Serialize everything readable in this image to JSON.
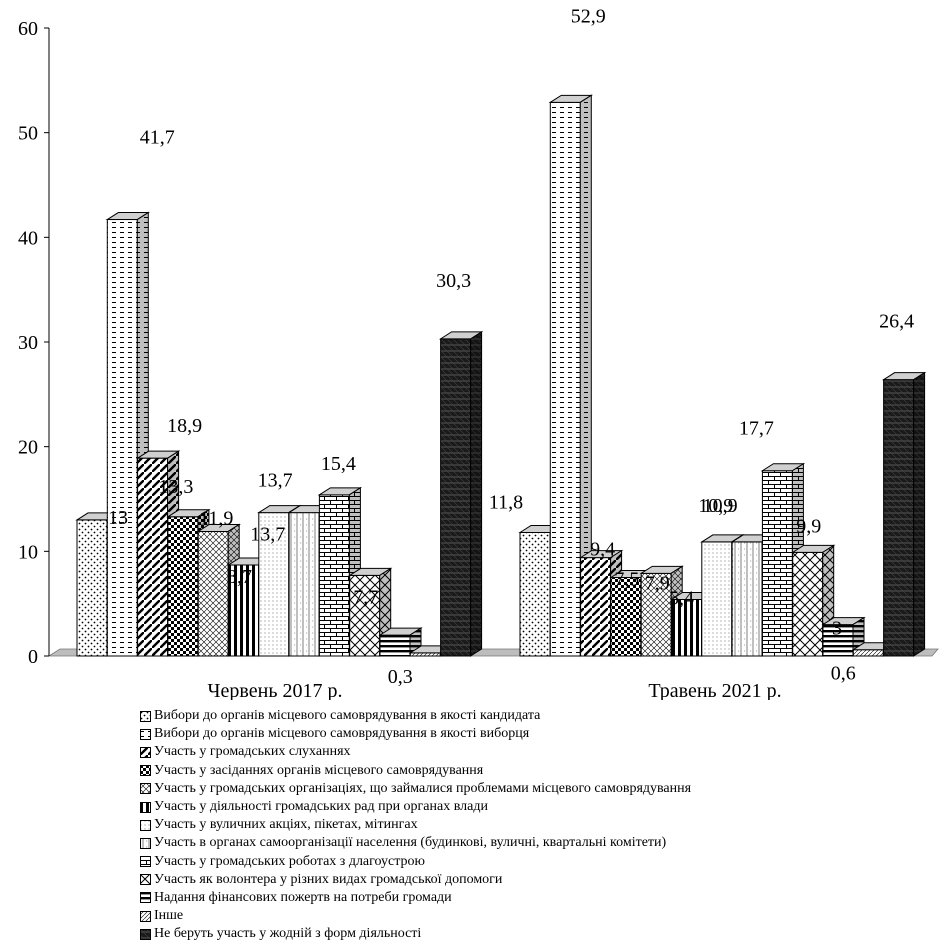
{
  "chart_data": {
    "type": "bar",
    "three_d": true,
    "grid": false,
    "legend_position": "bottom",
    "ylim": [
      0,
      60
    ],
    "yticks": [
      0,
      10,
      20,
      30,
      40,
      50,
      60
    ],
    "categories": [
      "Червень 2017 р.",
      "Травень 2021 р."
    ],
    "series": [
      {
        "name": "Вибори до органів місцевого самоврядування в якості кандидата",
        "values": [
          13,
          11.8
        ],
        "value_labels": [
          "13",
          "11,8"
        ]
      },
      {
        "name": "Вибори до органів місцевого самоврядування в якості виборця",
        "values": [
          41.7,
          52.9
        ],
        "value_labels": [
          "41,7",
          "52,9"
        ]
      },
      {
        "name": "Участь у громадських слуханнях",
        "values": [
          18.9,
          9.4
        ],
        "value_labels": [
          "18,9",
          "9,4"
        ]
      },
      {
        "name": "Участь у засіданнях органів місцевого самоврядування",
        "values": [
          13.3,
          7.5
        ],
        "value_labels": [
          "13,3",
          "7,5"
        ]
      },
      {
        "name": "Участь у громадських організаціях, що займалися проблемами місцевого самоврядування",
        "values": [
          11.9,
          7.9
        ],
        "value_labels": [
          "11,9",
          "7,9"
        ]
      },
      {
        "name": "Участь у діяльності громадських рад при органах влади",
        "values": [
          8.7,
          5.4
        ],
        "value_labels": [
          "8,7",
          "5,4"
        ]
      },
      {
        "name": "Участь у вуличних акціях, пікетах, мітингах",
        "values": [
          13.7,
          10.9
        ],
        "value_labels": [
          "13,7",
          "10,9"
        ]
      },
      {
        "name": "Участь в органах самоорганізації населення (будинкові, вуличні, квартальні комітети)",
        "values": [
          13.7,
          10.9
        ],
        "value_labels": [
          "13,7",
          "10,9"
        ]
      },
      {
        "name": "Участь у громадських роботах з длагоустрою",
        "values": [
          15.4,
          17.7
        ],
        "value_labels": [
          "15,4",
          "17,7"
        ]
      },
      {
        "name": "Участь як волонтера у різних видах громадської допомоги",
        "values": [
          7.7,
          9.9
        ],
        "value_labels": [
          "7,7",
          "9,9"
        ]
      },
      {
        "name": "Надання фінансових пожертв на потреби громади",
        "values": [
          2,
          3
        ],
        "value_labels": [
          "",
          "3"
        ]
      },
      {
        "name": "Інше",
        "values": [
          0.3,
          0.6
        ],
        "value_labels": [
          "0,3",
          "0,6"
        ]
      },
      {
        "name": "Не беруть участь у жодній з форм діяльності",
        "values": [
          30.3,
          26.4
        ],
        "value_labels": [
          "30,3",
          "26,4"
        ]
      }
    ]
  }
}
